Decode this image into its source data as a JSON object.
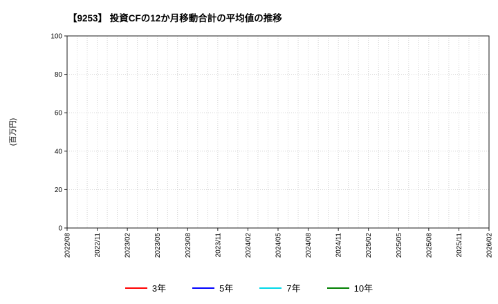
{
  "chart_data": {
    "type": "line",
    "title": "【9253】 投資CFの12か月移動合計の平均値の推移",
    "ylabel": "(百万円)",
    "ylim": [
      0,
      100
    ],
    "yticks": [
      0,
      20,
      40,
      60,
      80,
      100
    ],
    "x_tick_labels": [
      "2022/08",
      "2022/11",
      "2023/02",
      "2023/05",
      "2023/08",
      "2023/11",
      "2024/02",
      "2024/05",
      "2024/08",
      "2024/11",
      "2025/02",
      "2025/05",
      "2025/08",
      "2025/11",
      "2026/02"
    ],
    "x_tick_interval_months": 3,
    "grid": true,
    "grid_style": "dotted",
    "legend_position": "bottom",
    "series": [
      {
        "name": "3年",
        "color": "#ff0000",
        "values": []
      },
      {
        "name": "5年",
        "color": "#0000ff",
        "values": []
      },
      {
        "name": "7年",
        "color": "#00d8e8",
        "values": []
      },
      {
        "name": "10年",
        "color": "#008000",
        "values": []
      }
    ]
  }
}
